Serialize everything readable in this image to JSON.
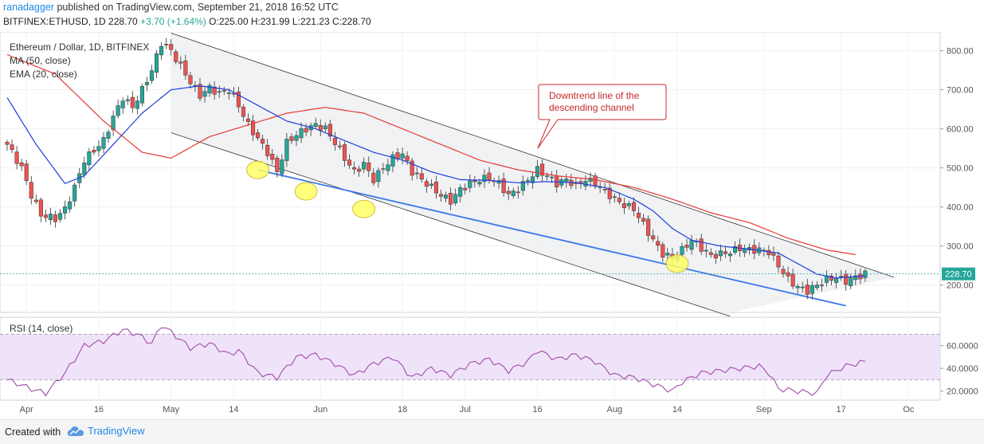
{
  "header": {
    "user": "ranadagger",
    "published_text": "published on TradingView.com, September 21, 2018 16:52 UTC",
    "symbol": "BITFINEX:ETHUSD, 1D",
    "last": "228.70",
    "change": "+3.70 (+1.64%)",
    "o_label": "O:",
    "o": "225.00",
    "h_label": "H:",
    "h": "231.99",
    "l_label": "L:",
    "l": "221.23",
    "c_label": "C:",
    "c": "228.70"
  },
  "legend": {
    "title": "Ethereum / Dollar, 1D, BITFINEX",
    "ma": "MA (50, close)",
    "ema": "EMA (20, close)",
    "rsi": "RSI (14, close)"
  },
  "annotation": {
    "line1": "Downtrend line of the",
    "line2": "descending channel"
  },
  "footer": {
    "created_with": "Created with",
    "brand": "TradingView"
  },
  "colors": {
    "up": "#26a69a",
    "down": "#ef5350",
    "ma": "#e53935",
    "ema": "#1e3fd8",
    "trendline": "#3b78e7",
    "channel_fill": "#eceff1",
    "rsi_line": "#a04ca8",
    "rsi_band": "#efe3fa",
    "highlight": "#ffff66"
  },
  "chart_data": {
    "type": "candlestick",
    "price_axis": {
      "ticks": [
        "800.00",
        "700.00",
        "600.00",
        "500.00",
        "400.00",
        "300.00",
        "200.00"
      ],
      "values": [
        800,
        700,
        600,
        500,
        400,
        300,
        200
      ],
      "ylim": [
        130,
        840
      ]
    },
    "rsi_axis": {
      "ticks": [
        "60.0000",
        "40.0000",
        "20.0000"
      ],
      "values": [
        60,
        40,
        20
      ],
      "ylim": [
        12,
        85
      ],
      "band": [
        30,
        70
      ]
    },
    "x_ticks": [
      {
        "label": "Apr",
        "day": 4
      },
      {
        "label": "16",
        "day": 19
      },
      {
        "label": "May",
        "day": 34
      },
      {
        "label": "14",
        "day": 47
      },
      {
        "label": "Jun",
        "day": 65
      },
      {
        "label": "18",
        "day": 82
      },
      {
        "label": "Jul",
        "day": 95
      },
      {
        "label": "16",
        "day": 110
      },
      {
        "label": "Aug",
        "day": 126
      },
      {
        "label": "14",
        "day": 139
      },
      {
        "label": "Sep",
        "day": 157
      },
      {
        "label": "17",
        "day": 173
      },
      {
        "label": "Oc",
        "day": 187
      }
    ],
    "last_price_label": "228.70",
    "last_price": 228.7,
    "close_anchors": [
      [
        0,
        560
      ],
      [
        3,
        500
      ],
      [
        5,
        430
      ],
      [
        7,
        380
      ],
      [
        10,
        370
      ],
      [
        12,
        395
      ],
      [
        14,
        450
      ],
      [
        16,
        520
      ],
      [
        18,
        545
      ],
      [
        20,
        570
      ],
      [
        22,
        630
      ],
      [
        24,
        680
      ],
      [
        26,
        655
      ],
      [
        28,
        700
      ],
      [
        30,
        750
      ],
      [
        32,
        820
      ],
      [
        34,
        800
      ],
      [
        36,
        760
      ],
      [
        38,
        720
      ],
      [
        40,
        685
      ],
      [
        42,
        705
      ],
      [
        44,
        690
      ],
      [
        46,
        700
      ],
      [
        48,
        660
      ],
      [
        50,
        610
      ],
      [
        52,
        575
      ],
      [
        54,
        540
      ],
      [
        56,
        490
      ],
      [
        58,
        565
      ],
      [
        60,
        585
      ],
      [
        62,
        600
      ],
      [
        64,
        610
      ],
      [
        66,
        600
      ],
      [
        68,
        565
      ],
      [
        70,
        525
      ],
      [
        72,
        490
      ],
      [
        74,
        510
      ],
      [
        76,
        470
      ],
      [
        78,
        500
      ],
      [
        80,
        525
      ],
      [
        82,
        535
      ],
      [
        84,
        490
      ],
      [
        86,
        470
      ],
      [
        88,
        450
      ],
      [
        90,
        430
      ],
      [
        92,
        415
      ],
      [
        94,
        445
      ],
      [
        96,
        460
      ],
      [
        98,
        470
      ],
      [
        100,
        475
      ],
      [
        102,
        460
      ],
      [
        104,
        430
      ],
      [
        106,
        445
      ],
      [
        108,
        470
      ],
      [
        110,
        495
      ],
      [
        112,
        480
      ],
      [
        114,
        460
      ],
      [
        116,
        470
      ],
      [
        118,
        455
      ],
      [
        120,
        470
      ],
      [
        122,
        460
      ],
      [
        124,
        440
      ],
      [
        126,
        420
      ],
      [
        128,
        405
      ],
      [
        130,
        395
      ],
      [
        132,
        355
      ],
      [
        134,
        315
      ],
      [
        136,
        280
      ],
      [
        138,
        270
      ],
      [
        140,
        290
      ],
      [
        142,
        315
      ],
      [
        144,
        295
      ],
      [
        146,
        275
      ],
      [
        148,
        280
      ],
      [
        150,
        285
      ],
      [
        152,
        295
      ],
      [
        154,
        290
      ],
      [
        156,
        290
      ],
      [
        158,
        285
      ],
      [
        160,
        250
      ],
      [
        162,
        215
      ],
      [
        164,
        195
      ],
      [
        166,
        185
      ],
      [
        168,
        200
      ],
      [
        170,
        215
      ],
      [
        172,
        220
      ],
      [
        174,
        210
      ],
      [
        176,
        220
      ],
      [
        178,
        228.7
      ]
    ],
    "ma50_anchors": [
      [
        0,
        790
      ],
      [
        10,
        740
      ],
      [
        20,
        620
      ],
      [
        28,
        540
      ],
      [
        34,
        525
      ],
      [
        42,
        580
      ],
      [
        50,
        610
      ],
      [
        58,
        640
      ],
      [
        66,
        655
      ],
      [
        74,
        640
      ],
      [
        82,
        600
      ],
      [
        90,
        560
      ],
      [
        98,
        520
      ],
      [
        106,
        495
      ],
      [
        114,
        480
      ],
      [
        122,
        470
      ],
      [
        130,
        450
      ],
      [
        138,
        420
      ],
      [
        146,
        385
      ],
      [
        154,
        360
      ],
      [
        162,
        320
      ],
      [
        170,
        290
      ],
      [
        176,
        278
      ]
    ],
    "ema20_anchors": [
      [
        0,
        680
      ],
      [
        6,
        560
      ],
      [
        12,
        460
      ],
      [
        16,
        480
      ],
      [
        22,
        560
      ],
      [
        28,
        640
      ],
      [
        34,
        700
      ],
      [
        40,
        710
      ],
      [
        46,
        700
      ],
      [
        52,
        660
      ],
      [
        58,
        620
      ],
      [
        64,
        600
      ],
      [
        70,
        570
      ],
      [
        76,
        540
      ],
      [
        82,
        520
      ],
      [
        88,
        490
      ],
      [
        94,
        470
      ],
      [
        100,
        468
      ],
      [
        106,
        462
      ],
      [
        112,
        465
      ],
      [
        118,
        462
      ],
      [
        124,
        450
      ],
      [
        130,
        420
      ],
      [
        134,
        390
      ],
      [
        138,
        345
      ],
      [
        142,
        315
      ],
      [
        148,
        300
      ],
      [
        154,
        292
      ],
      [
        160,
        282
      ],
      [
        164,
        255
      ],
      [
        168,
        228
      ],
      [
        172,
        218
      ],
      [
        178,
        224
      ]
    ],
    "rsi_anchors": [
      [
        0,
        30
      ],
      [
        5,
        22
      ],
      [
        8,
        18
      ],
      [
        12,
        36
      ],
      [
        16,
        60
      ],
      [
        20,
        64
      ],
      [
        24,
        74
      ],
      [
        27,
        70
      ],
      [
        30,
        62
      ],
      [
        32,
        78
      ],
      [
        34,
        72
      ],
      [
        38,
        58
      ],
      [
        42,
        62
      ],
      [
        46,
        52
      ],
      [
        48,
        56
      ],
      [
        52,
        36
      ],
      [
        56,
        32
      ],
      [
        60,
        50
      ],
      [
        64,
        52
      ],
      [
        68,
        44
      ],
      [
        72,
        34
      ],
      [
        76,
        44
      ],
      [
        80,
        50
      ],
      [
        84,
        32
      ],
      [
        88,
        40
      ],
      [
        92,
        34
      ],
      [
        96,
        44
      ],
      [
        100,
        48
      ],
      [
        104,
        38
      ],
      [
        108,
        46
      ],
      [
        110,
        56
      ],
      [
        114,
        48
      ],
      [
        118,
        52
      ],
      [
        122,
        46
      ],
      [
        126,
        34
      ],
      [
        130,
        32
      ],
      [
        134,
        26
      ],
      [
        138,
        20
      ],
      [
        140,
        28
      ],
      [
        144,
        36
      ],
      [
        148,
        38
      ],
      [
        152,
        40
      ],
      [
        156,
        42
      ],
      [
        158,
        36
      ],
      [
        160,
        22
      ],
      [
        164,
        20
      ],
      [
        168,
        18
      ],
      [
        170,
        34
      ],
      [
        174,
        42
      ],
      [
        178,
        46
      ]
    ],
    "channel": {
      "upper": [
        [
          34,
          845
        ],
        [
          184,
          220
        ]
      ],
      "lower": [
        [
          34,
          590
        ],
        [
          150,
          120
        ]
      ]
    },
    "support_line": [
      [
        52,
        495
      ],
      [
        174,
        147
      ]
    ],
    "touch_points": [
      [
        52,
        495
      ],
      [
        62,
        440
      ],
      [
        74,
        395
      ],
      [
        139,
        255
      ]
    ]
  }
}
